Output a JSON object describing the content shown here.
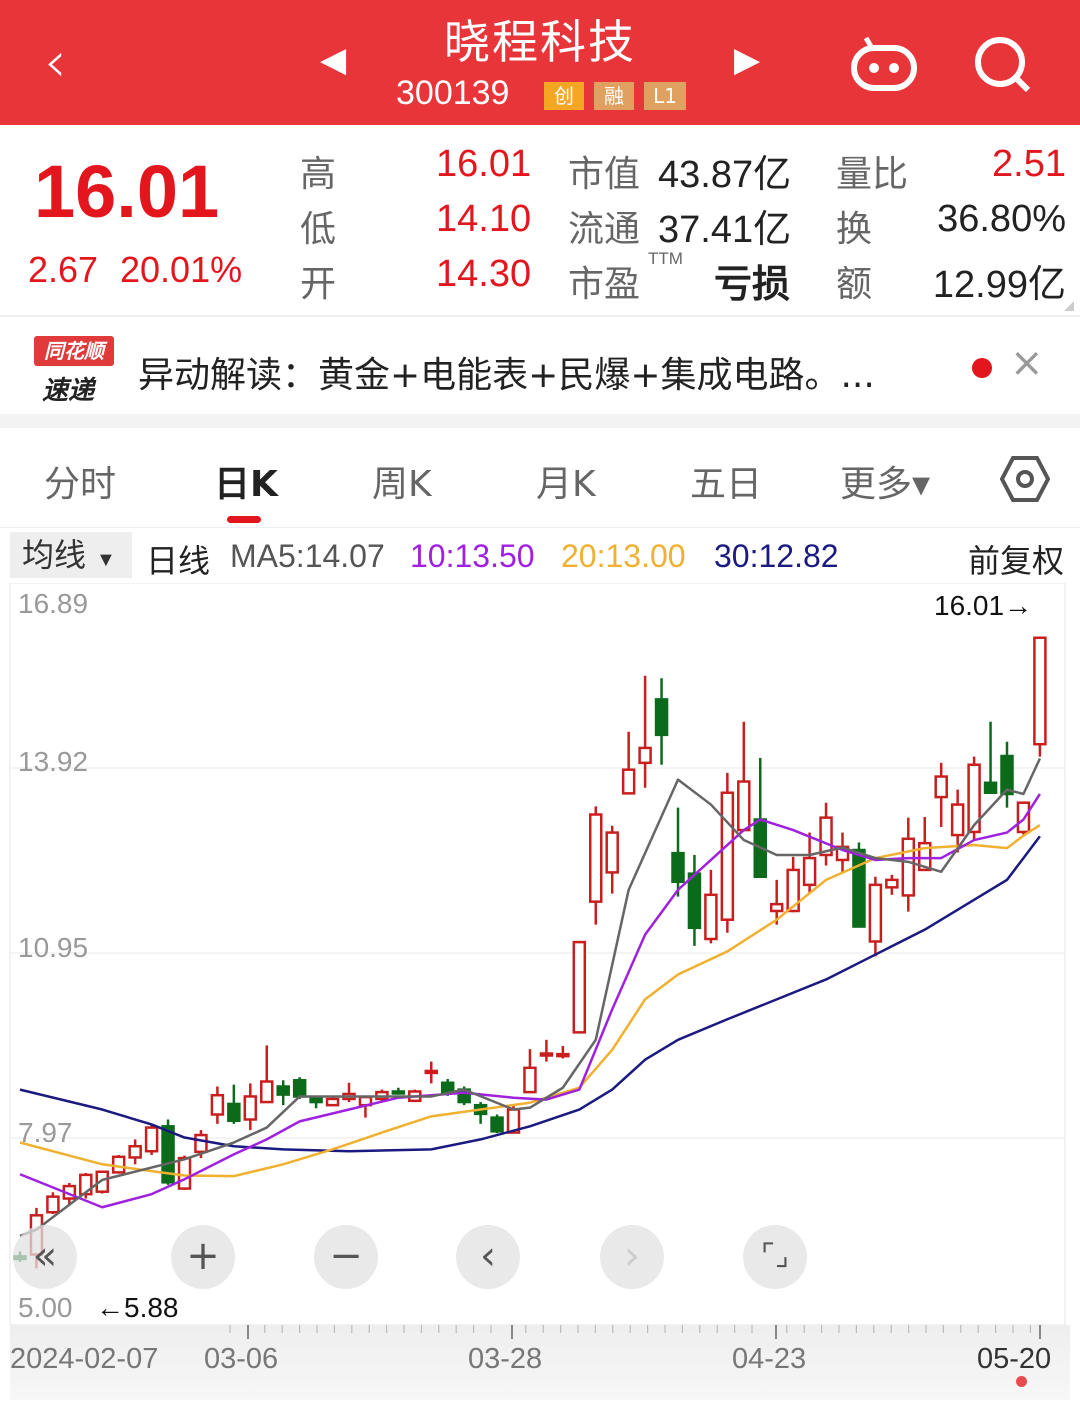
{
  "header": {
    "title": "晓程科技",
    "code": "300139",
    "badges": [
      {
        "label": "创",
        "color": "#f5a623"
      },
      {
        "label": "融",
        "color": "#e0a060"
      },
      {
        "label": "L1",
        "color": "#e0a060"
      }
    ]
  },
  "quote": {
    "price": "16.01",
    "change": "2.67",
    "change_pct": "20.01%",
    "rows": [
      {
        "label": "高",
        "value": "16.01",
        "label2": "市值",
        "value2": "43.87亿",
        "label3": "量比",
        "value3": "2.51"
      },
      {
        "label": "低",
        "value": "14.10",
        "label2": "流通",
        "value2": "37.41亿",
        "label3": "换",
        "value3": "36.80%"
      },
      {
        "label": "开",
        "value": "14.30",
        "label2": "市盈",
        "sup": "TTM",
        "value2": "亏损",
        "label3": "额",
        "value3": "12.99亿"
      }
    ]
  },
  "banner": {
    "logo_top": "同花顺",
    "logo_bottom": "速递",
    "text": "异动解读：黄金+电能表+民爆+集成电路。...",
    "close": "×"
  },
  "tabs": [
    {
      "label": "分时"
    },
    {
      "label": "日K",
      "active": true
    },
    {
      "label": "周K"
    },
    {
      "label": "月K"
    },
    {
      "label": "五日"
    },
    {
      "label": "更多▾"
    }
  ],
  "ma_bar": {
    "selector": "均线",
    "line_type": "日线",
    "ma5": "MA5:14.07",
    "ma10": "10:13.50",
    "ma20": "20:13.00",
    "ma30": "30:12.82",
    "adjust": "前复权"
  },
  "chart_data": {
    "type": "candlestick",
    "ylim": [
      5.0,
      16.89
    ],
    "y_ticks": [
      "16.89",
      "13.92",
      "10.95",
      "7.97",
      "5.00"
    ],
    "x_ticks": [
      "2024-02-07",
      "03-06",
      "03-28",
      "04-23",
      "05-20"
    ],
    "max_label": "16.01→",
    "min_label": "←5.88",
    "colors": {
      "up": "#c81e1e",
      "down": "#0b6b1a",
      "ma5": "#666666",
      "ma10": "#a020e0",
      "ma20": "#f0b030",
      "ma30": "#1a1a80"
    },
    "ohlc": [
      [
        6.07,
        6.15,
        5.98,
        6.03
      ],
      [
        6.1,
        6.85,
        5.88,
        6.73
      ],
      [
        6.78,
        7.1,
        6.75,
        7.03
      ],
      [
        7.0,
        7.25,
        6.9,
        7.2
      ],
      [
        7.07,
        7.41,
        7.0,
        7.38
      ],
      [
        7.11,
        7.45,
        7.08,
        7.43
      ],
      [
        7.42,
        7.7,
        7.4,
        7.67
      ],
      [
        7.66,
        7.95,
        7.55,
        7.84
      ],
      [
        7.76,
        8.2,
        7.7,
        8.14
      ],
      [
        8.16,
        8.27,
        7.22,
        7.26
      ],
      [
        7.16,
        7.69,
        7.14,
        7.65
      ],
      [
        7.75,
        8.1,
        7.65,
        8.02
      ],
      [
        8.35,
        8.8,
        8.2,
        8.66
      ],
      [
        8.52,
        8.83,
        8.2,
        8.25
      ],
      [
        8.27,
        8.85,
        8.1,
        8.64
      ],
      [
        8.55,
        9.46,
        8.55,
        8.88
      ],
      [
        8.8,
        8.9,
        8.5,
        8.67
      ],
      [
        8.9,
        8.95,
        8.6,
        8.64
      ],
      [
        8.63,
        8.63,
        8.45,
        8.55
      ],
      [
        8.5,
        8.63,
        8.5,
        8.6
      ],
      [
        8.6,
        8.86,
        8.55,
        8.68
      ],
      [
        8.5,
        8.63,
        8.3,
        8.63
      ],
      [
        8.6,
        8.75,
        8.55,
        8.71
      ],
      [
        8.72,
        8.78,
        8.67,
        8.7
      ],
      [
        8.57,
        8.75,
        8.55,
        8.72
      ],
      [
        9.03,
        9.2,
        8.85,
        9.05
      ],
      [
        8.86,
        8.92,
        8.65,
        8.7
      ],
      [
        8.75,
        8.8,
        8.5,
        8.55
      ],
      [
        8.5,
        8.55,
        8.2,
        8.36
      ],
      [
        8.3,
        8.35,
        8.05,
        8.08
      ],
      [
        8.06,
        8.5,
        8.05,
        8.43
      ],
      [
        8.71,
        9.4,
        8.7,
        9.1
      ],
      [
        9.3,
        9.55,
        9.2,
        9.33
      ],
      [
        9.3,
        9.45,
        9.25,
        9.32
      ],
      [
        9.67,
        11.12,
        9.67,
        11.12
      ],
      [
        11.77,
        13.3,
        11.4,
        13.17
      ],
      [
        12.24,
        12.99,
        11.9,
        12.88
      ],
      [
        13.51,
        14.5,
        13.5,
        13.89
      ],
      [
        14.0,
        15.4,
        13.6,
        14.24
      ],
      [
        15.02,
        15.36,
        13.97,
        14.45
      ],
      [
        12.55,
        13.28,
        11.85,
        12.09
      ],
      [
        12.22,
        12.52,
        11.06,
        11.35
      ],
      [
        11.17,
        12.28,
        11.1,
        11.88
      ],
      [
        11.48,
        13.84,
        11.27,
        13.52
      ],
      [
        12.92,
        14.66,
        12.9,
        13.7
      ],
      [
        13.09,
        14.08,
        12.15,
        12.17
      ],
      [
        11.62,
        12.12,
        11.4,
        11.73
      ],
      [
        11.62,
        12.49,
        11.6,
        12.28
      ],
      [
        12.04,
        12.88,
        11.9,
        12.47
      ],
      [
        12.52,
        13.36,
        12.35,
        13.12
      ],
      [
        12.44,
        12.88,
        12.24,
        12.65
      ],
      [
        12.6,
        12.72,
        11.37,
        11.37
      ],
      [
        11.13,
        12.17,
        10.89,
        12.04
      ],
      [
        12.0,
        12.2,
        11.88,
        12.12
      ],
      [
        11.87,
        13.12,
        11.61,
        12.78
      ],
      [
        12.28,
        13.13,
        12.28,
        12.71
      ],
      [
        13.45,
        14.0,
        12.97,
        13.78
      ],
      [
        12.84,
        13.57,
        12.56,
        13.33
      ],
      [
        12.89,
        14.1,
        12.76,
        13.97
      ],
      [
        13.68,
        14.66,
        13.5,
        13.52
      ],
      [
        14.11,
        14.34,
        13.28,
        13.5
      ],
      [
        12.89,
        13.37,
        12.85,
        13.36
      ],
      [
        14.3,
        16.01,
        14.1,
        16.01
      ]
    ],
    "ma": {
      "ma5": [
        [
          0,
          6.4
        ],
        [
          1,
          6.5
        ],
        [
          5,
          7.3
        ],
        [
          10,
          7.63
        ],
        [
          13,
          7.9
        ],
        [
          15,
          8.14
        ],
        [
          17,
          8.64
        ],
        [
          20,
          8.64
        ],
        [
          25,
          8.64
        ],
        [
          27,
          8.75
        ],
        [
          30,
          8.43
        ],
        [
          31,
          8.46
        ],
        [
          33,
          8.78
        ],
        [
          35,
          9.55
        ],
        [
          37,
          11.96
        ],
        [
          40,
          13.73
        ],
        [
          42,
          13.33
        ],
        [
          44,
          12.76
        ],
        [
          46,
          12.52
        ],
        [
          48,
          12.52
        ],
        [
          50,
          12.64
        ],
        [
          52,
          12.47
        ],
        [
          54,
          12.41
        ],
        [
          56,
          12.25
        ],
        [
          58,
          13.0
        ],
        [
          60,
          13.57
        ],
        [
          61,
          13.5
        ],
        [
          62,
          14.07
        ]
      ],
      "ma10": [
        [
          0,
          7.39
        ],
        [
          5,
          6.86
        ],
        [
          8,
          7.07
        ],
        [
          10,
          7.31
        ],
        [
          13,
          7.71
        ],
        [
          15,
          7.95
        ],
        [
          17,
          8.24
        ],
        [
          20,
          8.43
        ],
        [
          23,
          8.62
        ],
        [
          27,
          8.7
        ],
        [
          30,
          8.62
        ],
        [
          32,
          8.59
        ],
        [
          34,
          8.75
        ],
        [
          36,
          10.04
        ],
        [
          38,
          11.24
        ],
        [
          40,
          11.96
        ],
        [
          42,
          12.44
        ],
        [
          44,
          12.92
        ],
        [
          45,
          13.09
        ],
        [
          47,
          12.92
        ],
        [
          50,
          12.6
        ],
        [
          52,
          12.44
        ],
        [
          54,
          12.47
        ],
        [
          56,
          12.47
        ],
        [
          58,
          12.76
        ],
        [
          60,
          12.88
        ],
        [
          61,
          13.09
        ],
        [
          62,
          13.5
        ]
      ],
      "ma20": [
        [
          0,
          7.9
        ],
        [
          5,
          7.55
        ],
        [
          8,
          7.44
        ],
        [
          10,
          7.37
        ],
        [
          13,
          7.36
        ],
        [
          16,
          7.55
        ],
        [
          19,
          7.79
        ],
        [
          22,
          8.06
        ],
        [
          25,
          8.32
        ],
        [
          28,
          8.43
        ],
        [
          31,
          8.54
        ],
        [
          34,
          8.78
        ],
        [
          36,
          9.39
        ],
        [
          38,
          10.2
        ],
        [
          40,
          10.6
        ],
        [
          43,
          10.97
        ],
        [
          46,
          11.48
        ],
        [
          49,
          12.12
        ],
        [
          52,
          12.47
        ],
        [
          55,
          12.63
        ],
        [
          58,
          12.68
        ],
        [
          60,
          12.63
        ],
        [
          61,
          12.83
        ],
        [
          62,
          13.0
        ]
      ],
      "ma30": [
        [
          0,
          8.75
        ],
        [
          5,
          8.43
        ],
        [
          8,
          8.19
        ],
        [
          10,
          7.98
        ],
        [
          13,
          7.84
        ],
        [
          16,
          7.79
        ],
        [
          20,
          7.76
        ],
        [
          25,
          7.79
        ],
        [
          28,
          7.95
        ],
        [
          31,
          8.16
        ],
        [
          34,
          8.43
        ],
        [
          36,
          8.75
        ],
        [
          38,
          9.23
        ],
        [
          40,
          9.55
        ],
        [
          43,
          9.88
        ],
        [
          46,
          10.2
        ],
        [
          49,
          10.52
        ],
        [
          52,
          10.92
        ],
        [
          55,
          11.32
        ],
        [
          58,
          11.8
        ],
        [
          60,
          12.12
        ],
        [
          61,
          12.47
        ],
        [
          62,
          12.82
        ]
      ]
    }
  }
}
